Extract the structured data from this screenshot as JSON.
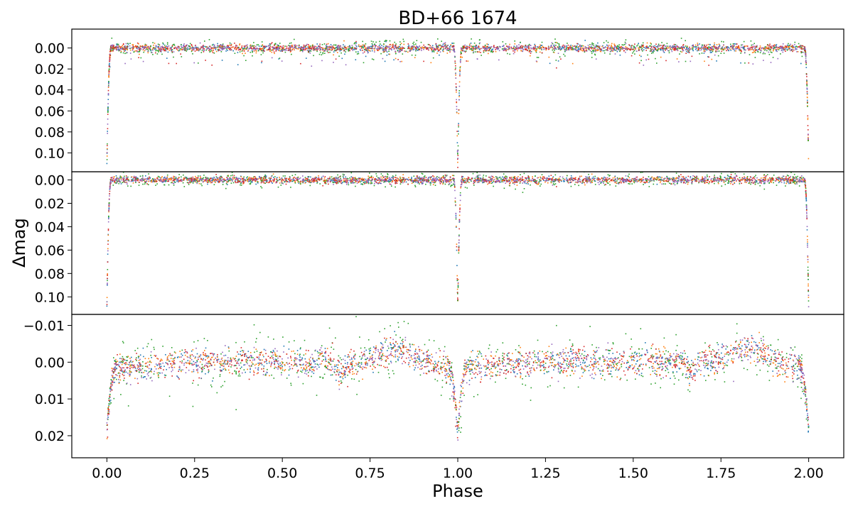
{
  "chart_data": {
    "type": "scatter",
    "title": "BD+66 1674",
    "xlabel": "Phase",
    "ylabel": "Δmag",
    "xlim": [
      -0.1,
      2.1
    ],
    "x_ticks": [
      0.0,
      0.25,
      0.5,
      0.75,
      1.0,
      1.25,
      1.5,
      1.75,
      2.0
    ],
    "x_tick_labels": [
      "0.00",
      "0.25",
      "0.50",
      "0.75",
      "1.00",
      "1.25",
      "1.50",
      "1.75",
      "2.00"
    ],
    "series_colors": [
      "#1f77b4",
      "#ff7f0e",
      "#2ca02c",
      "#d62728",
      "#9467bd"
    ],
    "panels": [
      {
        "name": "top",
        "y_inverted": true,
        "ylim": [
          0.118,
          -0.018
        ],
        "y_ticks": [
          0.0,
          0.02,
          0.04,
          0.06,
          0.08,
          0.1
        ],
        "y_tick_labels": [
          "0.00",
          "0.02",
          "0.04",
          "0.06",
          "0.08",
          "0.10"
        ],
        "eclipse_depth": 0.112,
        "eclipse_half_width": 0.012,
        "scatter": 0.003,
        "dip_amplitude": 0.015
      },
      {
        "name": "middle",
        "y_inverted": true,
        "ylim": [
          0.115,
          -0.007
        ],
        "y_ticks": [
          0.0,
          0.02,
          0.04,
          0.06,
          0.08,
          0.1
        ],
        "y_tick_labels": [
          "0.00",
          "0.02",
          "0.04",
          "0.06",
          "0.08",
          "0.10"
        ],
        "eclipse_depth": 0.11,
        "eclipse_half_width": 0.012,
        "scatter": 0.0025,
        "dip_amplitude": 0.0
      },
      {
        "name": "bottom",
        "y_inverted": true,
        "ylim": [
          0.026,
          -0.013
        ],
        "y_ticks": [
          -0.01,
          0.0,
          0.01,
          0.02
        ],
        "y_tick_labels": [
          "−0.01",
          "0.00",
          "0.01",
          "0.02"
        ],
        "eclipse_depth": 0.018,
        "eclipse_half_width": 0.03,
        "scatter": 0.0018,
        "hump_phase": 0.83,
        "hump_amplitude": -0.004,
        "secondary_dip_phase": 0.67,
        "secondary_dip_amplitude": 0.003
      }
    ]
  }
}
